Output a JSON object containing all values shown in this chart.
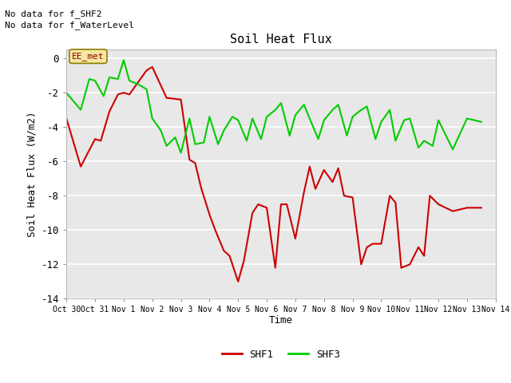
{
  "title": "Soil Heat Flux",
  "ylabel": "Soil Heat Flux (W/m2)",
  "xlabel": "Time",
  "ylim": [
    -14,
    0.5
  ],
  "xlim": [
    0,
    15
  ],
  "fig_bg_color": "#ffffff",
  "plot_bg_color": "#e8e8e8",
  "annotations": [
    "No data for f_SHF2",
    "No data for f_WaterLevel"
  ],
  "legend_box_label": "EE_met",
  "xtick_labels": [
    "Oct 30",
    "Oct 31",
    "Nov 1",
    "Nov 2",
    "Nov 3",
    "Nov 4",
    "Nov 5",
    "Nov 6",
    "Nov 7",
    "Nov 8",
    "Nov 9",
    "Nov 10",
    "Nov 11",
    "Nov 12",
    "Nov 13",
    "Nov 14"
  ],
  "ytick_values": [
    0,
    -2,
    -4,
    -6,
    -8,
    -10,
    -12,
    -14
  ],
  "shf1_color": "#cc0000",
  "shf3_color": "#00cc00",
  "shf1_x": [
    0,
    0.5,
    1.0,
    1.2,
    1.5,
    1.8,
    2.0,
    2.2,
    2.5,
    2.8,
    3.0,
    3.5,
    4.0,
    4.3,
    4.5,
    4.7,
    5.0,
    5.2,
    5.5,
    5.7,
    6.0,
    6.2,
    6.5,
    6.7,
    7.0,
    7.3,
    7.5,
    7.7,
    8.0,
    8.3,
    8.5,
    8.7,
    9.0,
    9.3,
    9.5,
    9.7,
    10.0,
    10.3,
    10.5,
    10.7,
    11.0,
    11.3,
    11.5,
    11.7,
    12.0,
    12.3,
    12.5,
    12.7,
    13.0,
    13.5,
    14.0,
    14.5
  ],
  "shf1_y": [
    -3.5,
    -6.3,
    -4.7,
    -4.8,
    -3.1,
    -2.1,
    -2.0,
    -2.1,
    -1.4,
    -0.7,
    -0.5,
    -2.3,
    -2.4,
    -5.9,
    -6.1,
    -7.5,
    -9.1,
    -10.0,
    -11.2,
    -11.5,
    -13.0,
    -11.8,
    -9.0,
    -8.5,
    -8.7,
    -12.2,
    -8.5,
    -8.5,
    -10.5,
    -7.8,
    -6.3,
    -7.6,
    -6.5,
    -7.2,
    -6.4,
    -8.0,
    -8.1,
    -12.0,
    -11.0,
    -10.8,
    -10.8,
    -8.0,
    -8.4,
    -12.2,
    -12.0,
    -11.0,
    -11.5,
    -8.0,
    -8.5,
    -8.9,
    -8.7,
    -8.7
  ],
  "shf3_x": [
    0,
    0.5,
    0.8,
    1.0,
    1.3,
    1.5,
    1.8,
    2.0,
    2.2,
    2.5,
    2.8,
    3.0,
    3.3,
    3.5,
    3.8,
    4.0,
    4.3,
    4.5,
    4.8,
    5.0,
    5.3,
    5.5,
    5.8,
    6.0,
    6.3,
    6.5,
    6.8,
    7.0,
    7.3,
    7.5,
    7.8,
    8.0,
    8.3,
    8.5,
    8.8,
    9.0,
    9.3,
    9.5,
    9.8,
    10.0,
    10.3,
    10.5,
    10.8,
    11.0,
    11.3,
    11.5,
    11.8,
    12.0,
    12.3,
    12.5,
    12.8,
    13.0,
    13.5,
    14.0,
    14.5
  ],
  "shf3_y": [
    -2.0,
    -3.0,
    -1.2,
    -1.3,
    -2.2,
    -1.1,
    -1.2,
    -0.1,
    -1.3,
    -1.5,
    -1.8,
    -3.5,
    -4.2,
    -5.1,
    -4.6,
    -5.5,
    -3.5,
    -5.0,
    -4.9,
    -3.4,
    -5.0,
    -4.2,
    -3.4,
    -3.6,
    -4.8,
    -3.5,
    -4.7,
    -3.4,
    -3.0,
    -2.6,
    -4.5,
    -3.3,
    -2.7,
    -3.5,
    -4.7,
    -3.6,
    -3.0,
    -2.7,
    -4.5,
    -3.4,
    -3.0,
    -2.8,
    -4.7,
    -3.7,
    -3.0,
    -4.8,
    -3.6,
    -3.5,
    -5.2,
    -4.8,
    -5.1,
    -3.6,
    -5.3,
    -3.5,
    -3.7
  ],
  "legend_line_color": "#cc0000",
  "legend_line2_color": "#00cc00"
}
